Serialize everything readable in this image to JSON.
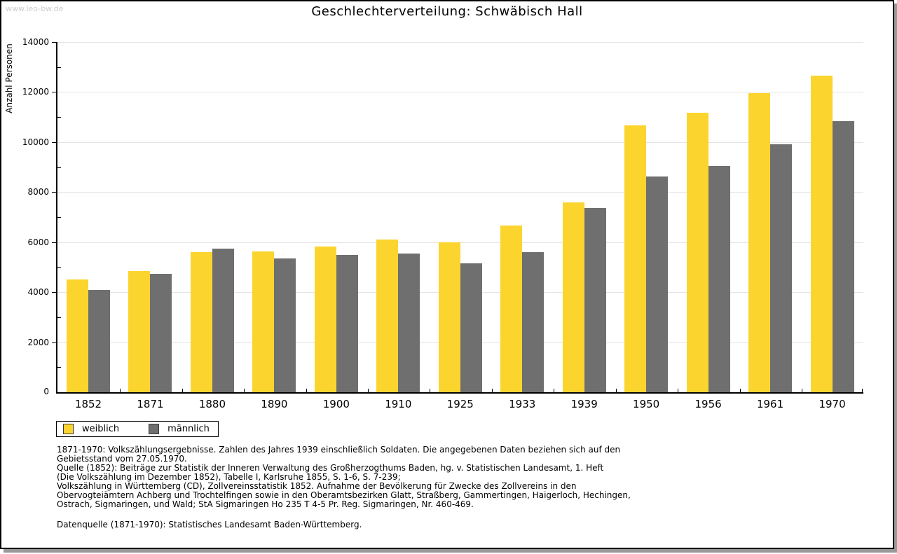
{
  "watermark": "www.leo-bw.de",
  "title": "Geschlechterverteilung: Schwäbisch Hall",
  "chart_data": {
    "type": "bar",
    "title": "Geschlechterverteilung: Schwäbisch Hall",
    "xlabel": "",
    "ylabel": "Anzahl Personen",
    "ylim": [
      0,
      14000
    ],
    "ytick_step": 2000,
    "ytick_labels": [
      "0",
      "2000",
      "4000",
      "6000",
      "8000",
      "10000",
      "12000",
      "14000"
    ],
    "grid": true,
    "legend_position": "bottom-left",
    "categories": [
      "1852",
      "1871",
      "1880",
      "1890",
      "1900",
      "1910",
      "1925",
      "1933",
      "1939",
      "1950",
      "1956",
      "1961",
      "1970"
    ],
    "series": [
      {
        "name": "weiblich",
        "color": "#fcd42e",
        "values": [
          4500,
          4830,
          5590,
          5640,
          5810,
          6090,
          5980,
          6650,
          7600,
          10670,
          11180,
          11960,
          12660
        ]
      },
      {
        "name": "männlich",
        "color": "#6f6f6f",
        "values": [
          4080,
          4720,
          5730,
          5340,
          5480,
          5530,
          5140,
          5590,
          7350,
          8610,
          9050,
          9920,
          10840
        ]
      }
    ]
  },
  "legend": {
    "items": [
      {
        "label": "weiblich",
        "color": "#fcd42e"
      },
      {
        "label": "männlich",
        "color": "#6f6f6f"
      }
    ]
  },
  "footnotes": {
    "lines": [
      "1871-1970: Volkszählungsergebnisse. Zahlen des Jahres 1939 einschließlich Soldaten. Die angegebenen Daten beziehen sich auf den",
      "Gebietsstand vom 27.05.1970.",
      "Quelle (1852): Beiträge zur Statistik der Inneren Verwaltung des Großherzogthums Baden, hg. v. Statistischen Landesamt, 1. Heft",
      "(Die Volkszählung im Dezember 1852), Tabelle I, Karlsruhe 1855, S. 1-6, S. 7-239;",
      "Volkszählung in Württemberg (CD), Zollvereinsstatistik 1852. Aufnahme der Bevölkerung für Zwecke des Zollvereins in den",
      "Obervogteiämtern Achberg und Trochtelfingen sowie in den Oberamtsbezirken Glatt, Straßberg, Gammertingen, Haigerloch, Hechingen,",
      "Ostrach, Sigmaringen, und Wald; StA Sigmaringen Ho 235 T 4-5 Pr. Reg. Sigmaringen, Nr. 460-469."
    ],
    "datasource": "Datenquelle (1871-1970): Statistisches Landesamt Baden-Württemberg."
  },
  "colors": {
    "weiblich": "#fcd42e",
    "männlich": "#6f6f6f",
    "gridline": "#e4e4e4",
    "axis": "#000000",
    "watermark": "#cccccc",
    "panel_shadow": "#999999"
  }
}
